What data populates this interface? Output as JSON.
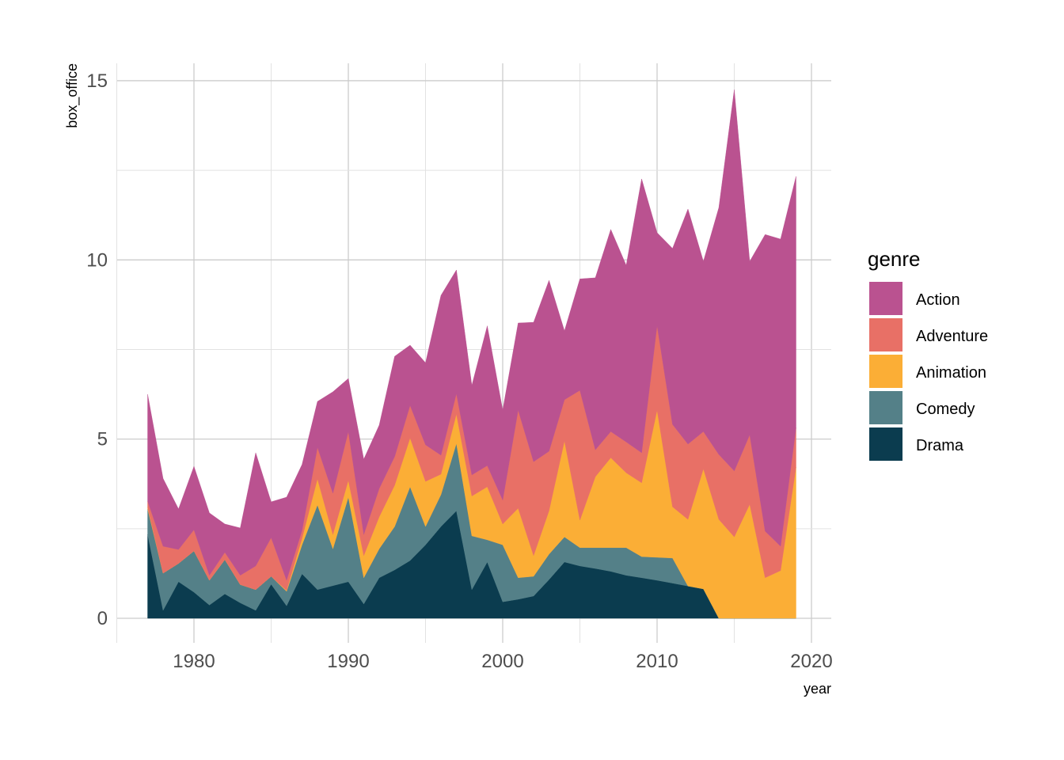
{
  "chart_data": {
    "type": "area",
    "stacked": true,
    "title": "",
    "xlabel": "year",
    "ylabel": "box_office",
    "xlim": [
      1975,
      2021.3
    ],
    "ylim": [
      -0.6,
      15.5
    ],
    "x_ticks": [
      1980,
      1990,
      2000,
      2010,
      2020
    ],
    "y_ticks": [
      0,
      5,
      10,
      15
    ],
    "grid": true,
    "legend": {
      "title": "genre",
      "position": "right"
    },
    "x": [
      1977,
      1978,
      1979,
      1980,
      1981,
      1982,
      1983,
      1984,
      1985,
      1986,
      1987,
      1988,
      1989,
      1990,
      1991,
      1992,
      1993,
      1994,
      1995,
      1996,
      1997,
      1998,
      1999,
      2000,
      2001,
      2002,
      2003,
      2004,
      2005,
      2006,
      2007,
      2008,
      2009,
      2010,
      2011,
      2012,
      2013,
      2014,
      2015,
      2016,
      2017,
      2018,
      2019
    ],
    "series": [
      {
        "name": "Action",
        "color": "#BA5290",
        "values": [
          2.98,
          1.89,
          1.13,
          1.77,
          1.74,
          0.79,
          1.32,
          3.16,
          1.0,
          2.32,
          1.84,
          1.28,
          2.83,
          1.48,
          2.1,
          1.77,
          2.8,
          1.68,
          2.29,
          4.46,
          3.45,
          2.5,
          3.9,
          2.51,
          2.43,
          3.89,
          4.77,
          1.92,
          3.11,
          4.8,
          5.64,
          4.93,
          7.64,
          2.59,
          4.91,
          6.56,
          4.75,
          6.89,
          10.64,
          4.84,
          8.28,
          8.57,
          7.01
        ]
      },
      {
        "name": "Adventure",
        "color": "#E87066",
        "values": [
          0.17,
          0.75,
          0.39,
          0.59,
          0.14,
          0.2,
          0.26,
          0.66,
          1.08,
          0.28,
          0.22,
          0.88,
          1.15,
          1.36,
          0.59,
          0.79,
          0.8,
          0.91,
          1.02,
          0.53,
          0.57,
          0.59,
          0.59,
          0.67,
          2.74,
          2.62,
          1.66,
          1.15,
          3.62,
          0.75,
          0.73,
          0.86,
          0.84,
          2.36,
          2.3,
          2.1,
          1.04,
          1.81,
          1.84,
          1.94,
          1.3,
          0.68,
          1.1
        ]
      },
      {
        "name": "Animation",
        "color": "#FBAE36",
        "values": [
          0.05,
          0,
          0,
          0,
          0,
          0,
          0,
          0,
          0,
          0.03,
          0.18,
          0.73,
          0.4,
          0.47,
          0.62,
          0.89,
          1.15,
          1.36,
          1.26,
          0.57,
          0.82,
          1.11,
          1.48,
          0.58,
          1.94,
          0.58,
          1.21,
          2.68,
          0.77,
          1.98,
          2.51,
          2.09,
          2.06,
          4.11,
          1.43,
          1.86,
          3.35,
          2.76,
          2.27,
          3.18,
          1.13,
          1.33,
          4.22
        ]
      },
      {
        "name": "Comedy",
        "color": "#548088",
        "values": [
          0.71,
          1.04,
          0.51,
          1.15,
          0.69,
          0.96,
          0.51,
          0.58,
          0.22,
          0.4,
          0.81,
          2.36,
          1.03,
          2.36,
          0.73,
          0.81,
          1.21,
          2.06,
          0.51,
          0.89,
          1.88,
          1.5,
          0.62,
          1.59,
          0.6,
          0.55,
          0.71,
          0.7,
          0.51,
          0.58,
          0.66,
          0.77,
          0.59,
          0.64,
          0.7,
          0,
          0,
          0,
          0,
          0,
          0,
          0,
          0
        ]
      },
      {
        "name": "Drama",
        "color": "#0B3C4F",
        "values": [
          2.34,
          0.22,
          1.02,
          0.73,
          0.37,
          0.68,
          0.43,
          0.22,
          0.95,
          0.35,
          1.24,
          0.8,
          0.91,
          1.02,
          0.4,
          1.13,
          1.35,
          1.61,
          2.05,
          2.56,
          3.0,
          0.8,
          1.57,
          0.46,
          0.53,
          0.62,
          1.08,
          1.57,
          1.46,
          1.39,
          1.31,
          1.2,
          1.13,
          1.06,
          0.98,
          0.9,
          0.82,
          0,
          0,
          0,
          0,
          0,
          0
        ]
      }
    ]
  }
}
